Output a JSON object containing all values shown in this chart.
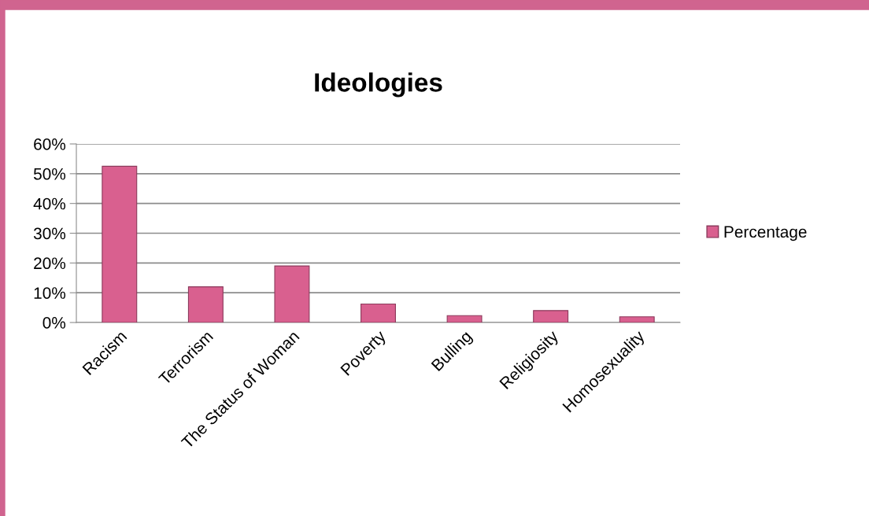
{
  "chart_data": {
    "type": "bar",
    "title": "Ideologies",
    "categories": [
      "Racism",
      "Terrorism",
      "The Status of Woman",
      "Poverty",
      "Bulling",
      "Religiosity",
      "Homosexuality"
    ],
    "series": [
      {
        "name": "Percentage",
        "color": "#d9608f",
        "values": [
          52.5,
          12,
          19,
          6.2,
          2.3,
          4,
          1.9
        ]
      }
    ],
    "ylim": [
      0,
      60
    ],
    "yticks": [
      {
        "value": 0,
        "label": "0%"
      },
      {
        "value": 10,
        "label": "10%"
      },
      {
        "value": 20,
        "label": "20%"
      },
      {
        "value": 30,
        "label": "30%"
      },
      {
        "value": 40,
        "label": "40%"
      },
      {
        "value": 50,
        "label": "50%"
      },
      {
        "value": 60,
        "label": "60%"
      }
    ],
    "grid": "y",
    "legend": "right"
  }
}
